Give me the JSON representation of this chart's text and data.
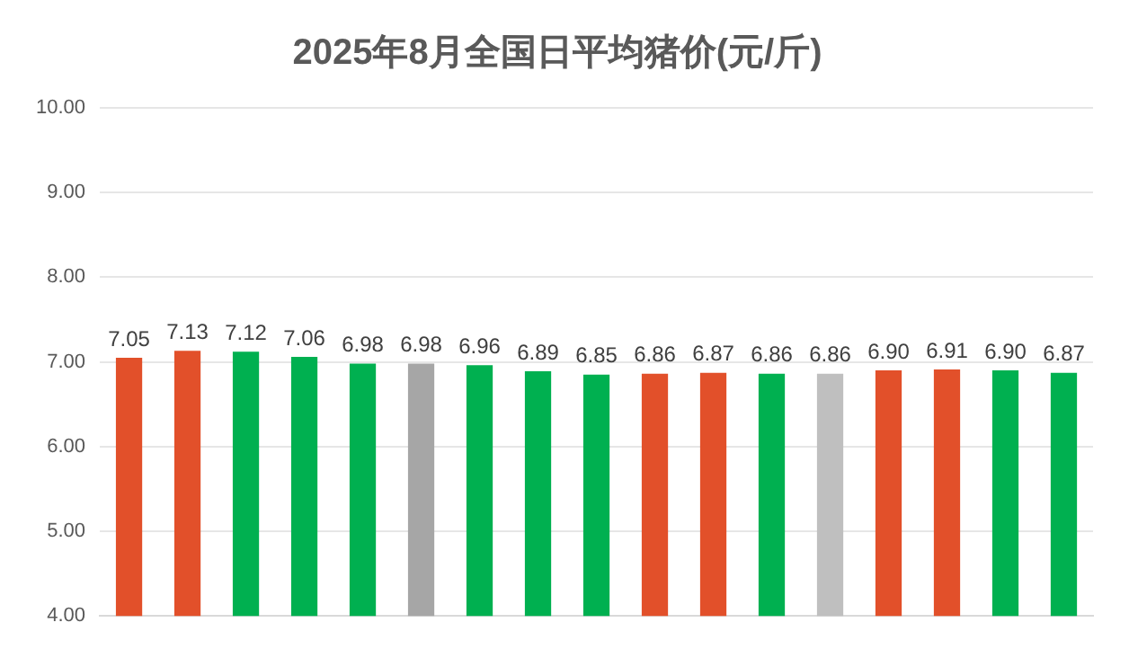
{
  "chart_data": {
    "type": "bar",
    "title": "2025年8月全国日平均猪价(元/斤)",
    "categories": [
      null,
      null,
      null,
      null,
      null,
      null,
      null,
      null,
      null,
      null,
      null,
      null,
      null,
      null,
      null,
      null,
      null
    ],
    "values": [
      7.05,
      7.13,
      7.12,
      7.06,
      6.98,
      6.98,
      6.96,
      6.89,
      6.85,
      6.86,
      6.87,
      6.86,
      6.86,
      6.9,
      6.91,
      6.9,
      6.87
    ],
    "value_labels": [
      "7.05",
      "7.13",
      "7.12",
      "7.06",
      "6.98",
      "6.98",
      "6.96",
      "6.89",
      "6.85",
      "6.86",
      "6.87",
      "6.86",
      "6.86",
      "6.90",
      "6.91",
      "6.90",
      "6.87"
    ],
    "colors": [
      "#e2502a",
      "#e2502a",
      "#00b050",
      "#00b050",
      "#00b050",
      "#a6a6a6",
      "#00b050",
      "#00b050",
      "#00b050",
      "#e2502a",
      "#e2502a",
      "#00b050",
      "#bfbfbf",
      "#e2502a",
      "#e2502a",
      "#00b050",
      "#00b050"
    ],
    "ylim": [
      4,
      10
    ],
    "yticks": [
      {
        "value": 4,
        "label": "4.00"
      },
      {
        "value": 5,
        "label": "5.00"
      },
      {
        "value": 6,
        "label": "6.00"
      },
      {
        "value": 7,
        "label": "7.00"
      },
      {
        "value": 8,
        "label": "8.00"
      },
      {
        "value": 9,
        "label": "9.00"
      },
      {
        "value": 10,
        "label": "10.00"
      }
    ],
    "grid": "y",
    "legend": false
  }
}
